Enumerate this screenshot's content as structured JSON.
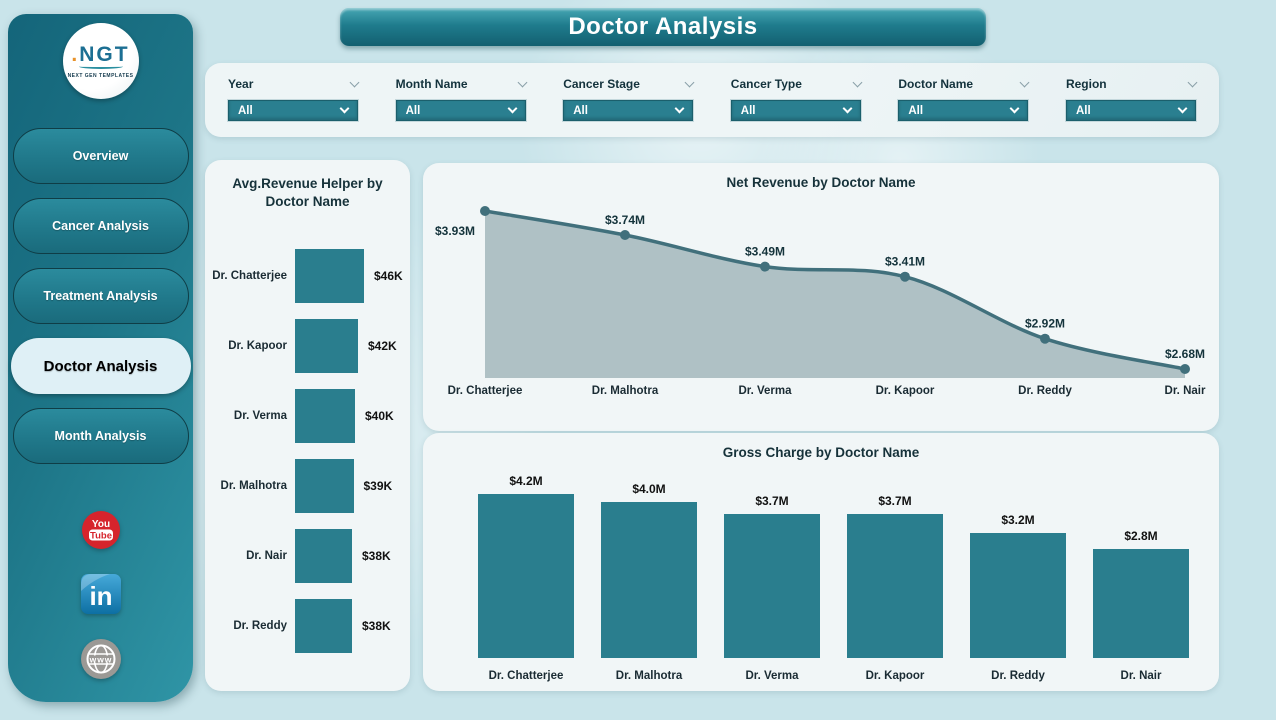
{
  "page": {
    "title": "Doctor Analysis"
  },
  "sidebar": {
    "logo": {
      "text": "NGT",
      "subtext": "NEXT GEN TEMPLATES"
    },
    "items": [
      {
        "label": "Overview",
        "active": false
      },
      {
        "label": "Cancer Analysis",
        "active": false
      },
      {
        "label": "Treatment Analysis",
        "active": false
      },
      {
        "label": "Doctor Analysis",
        "active": true
      },
      {
        "label": "Month Analysis",
        "active": false
      }
    ],
    "social": [
      {
        "name": "youtube",
        "text_top": "You",
        "text_bottom": "Tube"
      },
      {
        "name": "linkedin",
        "text": "in"
      },
      {
        "name": "website",
        "text": "www"
      }
    ]
  },
  "filters": [
    {
      "label": "Year",
      "value": "All"
    },
    {
      "label": "Month Name",
      "value": "All"
    },
    {
      "label": "Cancer Stage",
      "value": "All"
    },
    {
      "label": "Cancer Type",
      "value": "All"
    },
    {
      "label": "Doctor Name",
      "value": "All"
    },
    {
      "label": "Region",
      "value": "All"
    }
  ],
  "chart_data": [
    {
      "type": "bar",
      "orientation": "horizontal",
      "title": "Avg.Revenue Helper by Doctor Name",
      "categories": [
        "Dr. Chatterjee",
        "Dr. Kapoor",
        "Dr. Verma",
        "Dr. Malhotra",
        "Dr. Nair",
        "Dr. Reddy"
      ],
      "values": [
        46,
        42,
        40,
        39,
        38,
        38
      ],
      "value_labels": [
        "$46K",
        "$42K",
        "$40K",
        "$39K",
        "$38K",
        "$38K"
      ],
      "unit": "USD thousands",
      "xlim": [
        0,
        46
      ],
      "grid": false,
      "legend": "none"
    },
    {
      "type": "area",
      "title": "Net Revenue by Doctor Name",
      "categories": [
        "Dr. Chatterjee",
        "Dr. Malhotra",
        "Dr. Verma",
        "Dr. Kapoor",
        "Dr. Reddy",
        "Dr. Nair"
      ],
      "values": [
        3.93,
        3.74,
        3.49,
        3.41,
        2.92,
        2.68
      ],
      "value_labels": [
        "$3.93M",
        "$3.74M",
        "$3.49M",
        "$3.41M",
        "$2.92M",
        "$2.68M"
      ],
      "unit": "USD millions",
      "ylim": [
        2.61,
        4.1
      ],
      "grid": false,
      "legend": "none"
    },
    {
      "type": "bar",
      "orientation": "vertical",
      "title": "Gross Charge by Doctor Name",
      "categories": [
        "Dr. Chatterjee",
        "Dr. Malhotra",
        "Dr. Verma",
        "Dr. Kapoor",
        "Dr. Reddy",
        "Dr. Nair"
      ],
      "values": [
        4.2,
        4.0,
        3.7,
        3.7,
        3.2,
        2.8
      ],
      "value_labels": [
        "$4.2M",
        "$4.0M",
        "$3.7M",
        "$3.7M",
        "$3.2M",
        "$2.8M"
      ],
      "unit": "USD millions",
      "ylim": [
        0,
        4.6
      ],
      "grid": false,
      "legend": "none"
    }
  ],
  "colors": {
    "accent_teal": "#2a7e8e",
    "sidebar_gradient_start": "#14657a",
    "sidebar_gradient_end": "#2f95a6",
    "active_nav_bg": "#dff0f6",
    "page_bg": "#c9e4ea",
    "panel_bg": "#f1f6f7",
    "area_fill": "#a9bcc0",
    "line_color": "#41707c",
    "youtube_red": "#d6242c",
    "linkedin_blue": "#1378a9",
    "globe_gray": "#9b9995"
  }
}
